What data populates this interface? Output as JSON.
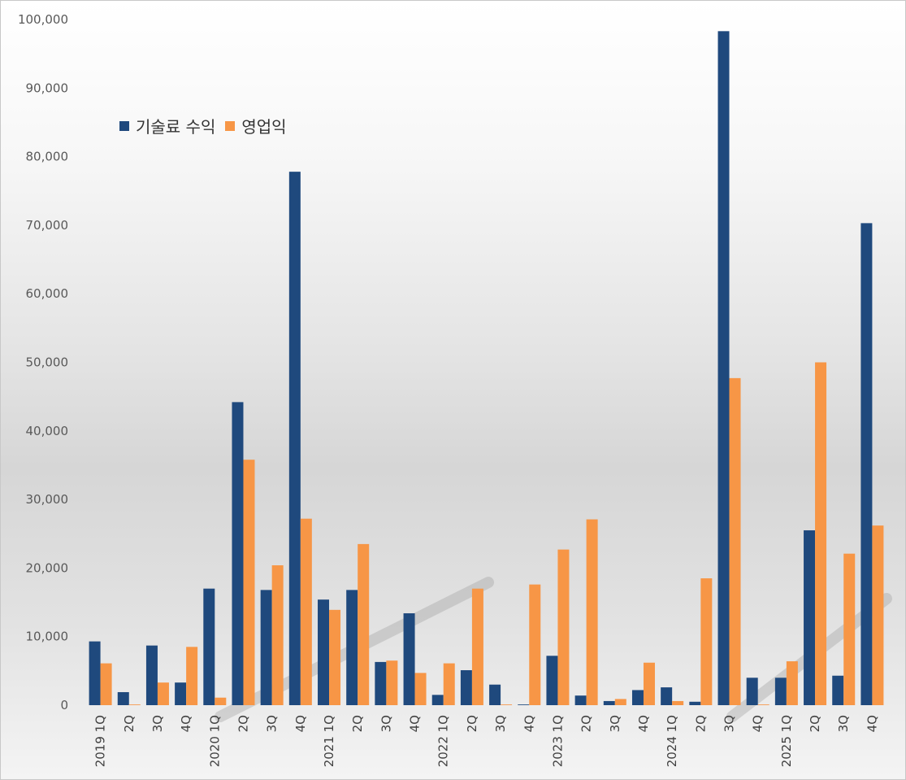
{
  "chart_data": {
    "type": "bar",
    "categories": [
      "2019 1Q",
      "2Q",
      "3Q",
      "4Q",
      "2020 1Q",
      "2Q",
      "3Q",
      "4Q",
      "2021 1Q",
      "2Q",
      "3Q",
      "4Q",
      "2022 1Q",
      "2Q",
      "3Q",
      "4Q",
      "2023 1Q",
      "2Q",
      "3Q",
      "4Q",
      "2024 1Q",
      "2Q",
      "3Q",
      "4Q",
      "2025 1Q",
      "2Q",
      "3Q",
      "4Q"
    ],
    "series": [
      {
        "name": "기술료 수익",
        "color": "#1f497d",
        "values": [
          9300,
          1900,
          8700,
          3300,
          17000,
          44200,
          16800,
          77800,
          15400,
          16800,
          6300,
          13400,
          1500,
          5100,
          3000,
          100,
          7200,
          1400,
          600,
          2200,
          2600,
          500,
          98300,
          4000,
          4000,
          25500,
          4300,
          70300
        ]
      },
      {
        "name": "영업익",
        "color": "#f79646",
        "values": [
          6100,
          100,
          3300,
          8500,
          1100,
          35800,
          20400,
          27200,
          13900,
          23500,
          6500,
          4700,
          6100,
          17000,
          100,
          17600,
          22700,
          27100,
          900,
          6200,
          600,
          18500,
          47700,
          100,
          6400,
          50000,
          22100,
          26200
        ]
      }
    ],
    "ylim": [
      0,
      100000
    ],
    "yticks": [
      "0",
      "10,000",
      "20,000",
      "30,000",
      "40,000",
      "50,000",
      "60,000",
      "70,000",
      "80,000",
      "90,000",
      "100,000"
    ],
    "legend_position": "top-left",
    "grid": false,
    "title": "",
    "xlabel": "",
    "ylabel": ""
  }
}
